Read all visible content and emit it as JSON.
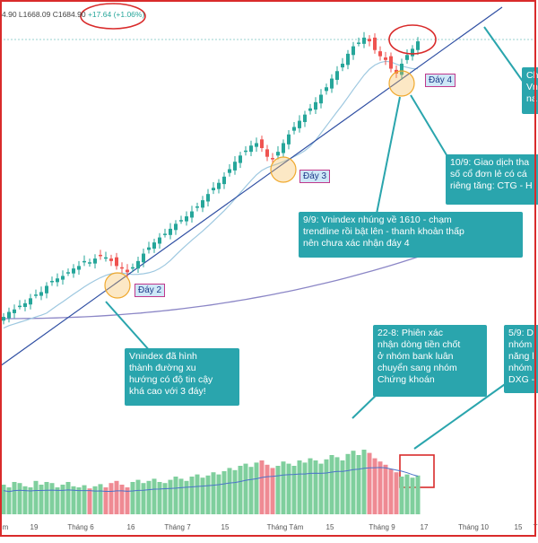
{
  "header": {
    "ohlc_text": "4.90  L1668.09  C1684.90",
    "change_text": "+17.64 (+1.06%)"
  },
  "colors": {
    "up": "#26a69a",
    "down": "#ef5350",
    "vol_up": "#7fcf9d",
    "vol_down": "#ef8a93",
    "trendline": "#2f4fa3",
    "ma_short": "#9ec8e0",
    "ma_long": "#8b86c6",
    "callout_bg": "#2aa5ad",
    "highlight": "#d92b2b"
  },
  "x_axis": {
    "labels": [
      "m",
      "19",
      "Tháng 6",
      "16",
      "Tháng 7",
      "15",
      "Tháng Tám",
      "15",
      "Tháng 9",
      "17",
      "Tháng 10",
      "15",
      "Tháng"
    ]
  },
  "day_labels": {
    "d2": "Đáy 2",
    "d3": "Đáy 3",
    "d4": "Đáy 4"
  },
  "callouts": {
    "trend": "Vnindex đã hình\nthành đường xu\nhướng có độ tin cậy\nkhá cao với 3 đáy!",
    "sep9": "9/9: Vnindex nhúng về 1610 - chạm\ntrendline rồi bật lên - thanh khoản thấp\nnên chưa xác nhận đáy 4",
    "oct10": "10/9: Giao dịch tha\nsố cổ đơn lẻ có cá\nriêng tăng: CTG - H",
    "aug22": "22-8: Phiên xác\nnhận dòng tiền chốt\nở nhóm bank luân\nchuyển sang nhóm\nChứng khoán",
    "sep5": "5/9: D\nnhóm\nnăng l\nnhóm\nDXG -",
    "topright": "Ch\nVn\nna"
  },
  "chart_data": {
    "type": "candlestick",
    "title": "",
    "instrument": "VN-Index",
    "last": {
      "low": 1668.09,
      "close": 1684.9,
      "change": 17.64,
      "change_pct": 1.06
    },
    "x_ticks": [
      "m",
      "19",
      "Tháng 6",
      "16",
      "Tháng 7",
      "15",
      "Tháng Tám",
      "15",
      "Tháng 9",
      "17",
      "Tháng 10",
      "15",
      "Tháng"
    ],
    "annotations": [
      {
        "label": "Đáy 2",
        "period": "Tháng 6"
      },
      {
        "label": "Đáy 3",
        "period": "Tháng Tám"
      },
      {
        "label": "Đáy 4",
        "period": "Tháng 9"
      }
    ],
    "close_index_estimate": [
      1240,
      1248,
      1252,
      1258,
      1262,
      1270,
      1276,
      1280,
      1290,
      1298,
      1302,
      1306,
      1312,
      1318,
      1322,
      1330,
      1328,
      1334,
      1338,
      1336,
      1330,
      1322,
      1318,
      1312,
      1320,
      1330,
      1342,
      1352,
      1360,
      1368,
      1374,
      1382,
      1390,
      1396,
      1402,
      1410,
      1418,
      1428,
      1438,
      1448,
      1456,
      1466,
      1478,
      1490,
      1500,
      1508,
      1516,
      1520,
      1512,
      1498,
      1494,
      1506,
      1520,
      1534,
      1546,
      1556,
      1566,
      1576,
      1586,
      1598,
      1610,
      1624,
      1636,
      1648,
      1664,
      1676,
      1682,
      1690,
      1684,
      1670,
      1660,
      1654,
      1640,
      1632,
      1648,
      1662,
      1672,
      1684
    ],
    "volume_relative": [
      0.55,
      0.5,
      0.6,
      0.58,
      0.52,
      0.5,
      0.62,
      0.55,
      0.6,
      0.58,
      0.5,
      0.55,
      0.6,
      0.52,
      0.5,
      0.54,
      0.48,
      0.52,
      0.56,
      0.5,
      0.58,
      0.62,
      0.55,
      0.5,
      0.6,
      0.64,
      0.58,
      0.62,
      0.66,
      0.6,
      0.58,
      0.64,
      0.7,
      0.66,
      0.62,
      0.7,
      0.74,
      0.68,
      0.72,
      0.78,
      0.74,
      0.8,
      0.86,
      0.82,
      0.9,
      0.94,
      0.88,
      0.96,
      1.0,
      0.92,
      0.86,
      0.9,
      0.98,
      0.94,
      0.9,
      1.0,
      0.96,
      1.04,
      1.0,
      0.94,
      1.02,
      1.1,
      1.06,
      1.0,
      1.12,
      1.18,
      1.1,
      1.2,
      1.14,
      1.04,
      0.98,
      0.92,
      0.84,
      0.78,
      0.7,
      0.74,
      0.68,
      0.72
    ]
  }
}
